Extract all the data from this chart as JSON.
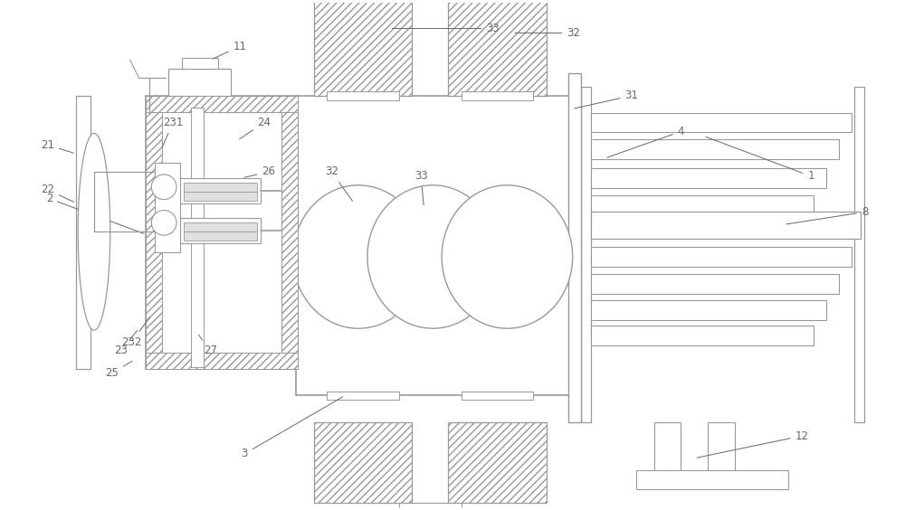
{
  "lc": "#999999",
  "lc2": "#aaaaaa",
  "fig_w": 10.0,
  "fig_h": 5.64,
  "fs": 8.0,
  "tc": "#666666"
}
